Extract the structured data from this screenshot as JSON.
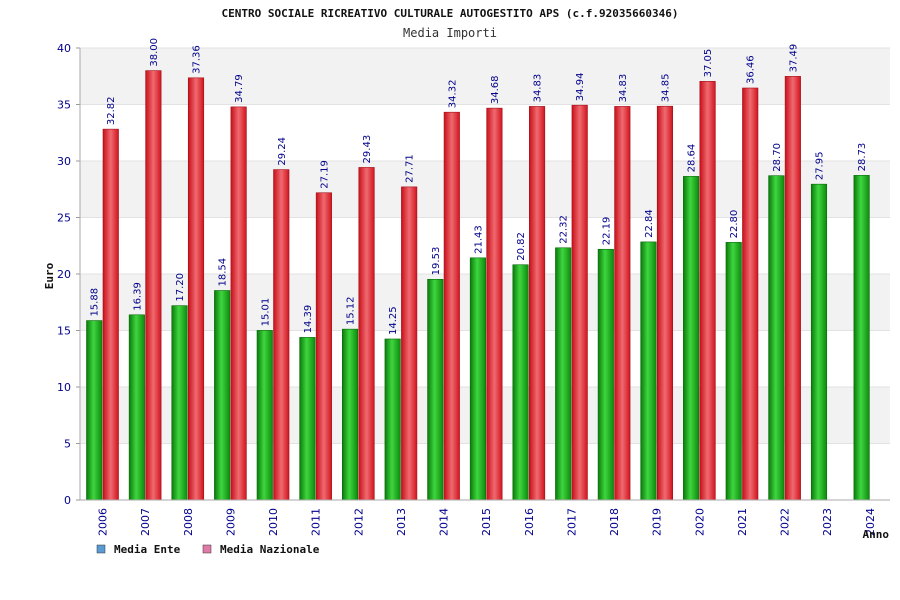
{
  "chart_data": {
    "type": "bar",
    "title": "CENTRO SOCIALE RICREATIVO CULTURALE AUTOGESTITO APS (c.f.92035660346)",
    "subtitle": "Media Importi",
    "ylabel": "Euro",
    "xlabel": "Anno",
    "ylim": [
      0,
      40
    ],
    "yticks": [
      "0",
      "5",
      "10",
      "15",
      "20",
      "25",
      "30",
      "35",
      "40"
    ],
    "grid": true,
    "legend_position": "bottom-left",
    "categories": [
      "2006",
      "2007",
      "2008",
      "2009",
      "2010",
      "2011",
      "2012",
      "2013",
      "2014",
      "2015",
      "2016",
      "2017",
      "2018",
      "2019",
      "2020",
      "2021",
      "2022",
      "2023",
      "2024"
    ],
    "series": [
      {
        "name": "Media Ente",
        "color": "#1aa61a",
        "legend_color": "#5b9bd5",
        "values": [
          15.88,
          16.39,
          17.2,
          18.54,
          15.01,
          14.39,
          15.12,
          14.25,
          19.53,
          21.43,
          20.82,
          22.32,
          22.19,
          22.84,
          28.64,
          22.8,
          28.7,
          27.95,
          28.73
        ],
        "labels": [
          "15.88",
          "16.39",
          "17.20",
          "18.54",
          "15.01",
          "14.39",
          "15.12",
          "14.25",
          "19.53",
          "21.43",
          "20.82",
          "22.32",
          "22.19",
          "22.84",
          "28.64",
          "22.80",
          "28.70",
          "27.95",
          "28.73"
        ]
      },
      {
        "name": "Media Nazionale",
        "color": "#e0202a",
        "legend_color": "#e07aa8",
        "values": [
          32.82,
          38.0,
          37.36,
          34.79,
          29.24,
          27.19,
          29.43,
          27.71,
          34.32,
          34.68,
          34.83,
          34.94,
          34.83,
          34.85,
          37.05,
          36.46,
          37.49,
          null,
          null
        ],
        "labels": [
          "32.82",
          "38.00",
          "37.36",
          "34.79",
          "29.24",
          "27.19",
          "29.43",
          "27.71",
          "34.32",
          "34.68",
          "34.83",
          "34.94",
          "34.83",
          "34.85",
          "37.05",
          "36.46",
          "37.49",
          "",
          ""
        ]
      }
    ]
  }
}
